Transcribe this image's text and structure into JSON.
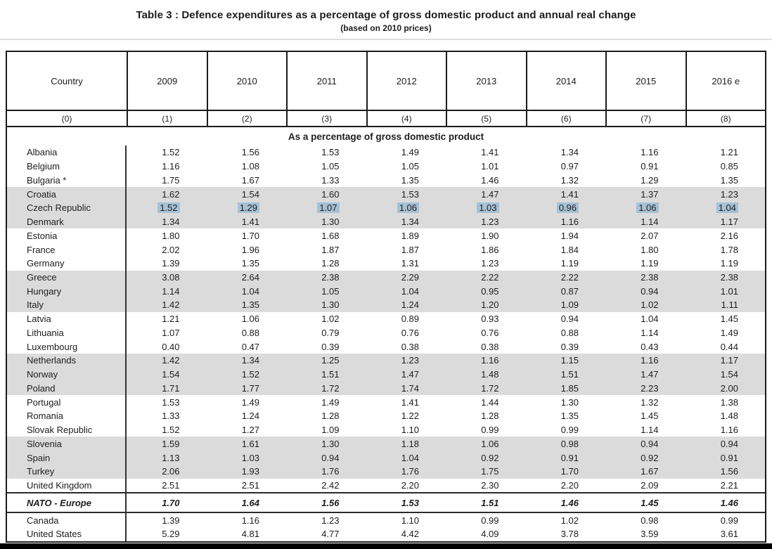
{
  "title": "Table 3 : Defence expenditures as a percentage of gross domestic product and annual real change",
  "subtitle": "(based on 2010 prices)",
  "section_header": "As a percentage of gross domestic product",
  "columns": [
    "Country",
    "2009",
    "2010",
    "2011",
    "2012",
    "2013",
    "2014",
    "2015",
    "2016 e"
  ],
  "column_indices": [
    "(0)",
    "(1)",
    "(2)",
    "(3)",
    "(4)",
    "(5)",
    "(6)",
    "(7)",
    "(8)"
  ],
  "colors": {
    "shaded_row": "#dbdbdb",
    "highlight_selection": "#a6c1d6",
    "border": "#1b1b1b"
  },
  "rows": [
    {
      "country": "Albania",
      "values": [
        "1.52",
        "1.56",
        "1.53",
        "1.49",
        "1.41",
        "1.34",
        "1.16",
        "1.21"
      ],
      "shaded": false,
      "highlighted": false,
      "total": false
    },
    {
      "country": "Belgium",
      "values": [
        "1.16",
        "1.08",
        "1.05",
        "1.05",
        "1.01",
        "0.97",
        "0.91",
        "0.85"
      ],
      "shaded": false,
      "highlighted": false,
      "total": false
    },
    {
      "country": "Bulgaria *",
      "values": [
        "1.75",
        "1.67",
        "1.33",
        "1.35",
        "1.46",
        "1.32",
        "1.29",
        "1.35"
      ],
      "shaded": false,
      "highlighted": false,
      "total": false
    },
    {
      "country": "Croatia",
      "values": [
        "1.62",
        "1.54",
        "1.60",
        "1.53",
        "1.47",
        "1.41",
        "1.37",
        "1.23"
      ],
      "shaded": true,
      "highlighted": false,
      "total": false
    },
    {
      "country": "Czech Republic",
      "values": [
        "1.52",
        "1.29",
        "1.07",
        "1.06",
        "1.03",
        "0.96",
        "1.06",
        "1.04"
      ],
      "shaded": true,
      "highlighted": true,
      "total": false
    },
    {
      "country": "Denmark",
      "values": [
        "1.34",
        "1.41",
        "1.30",
        "1.34",
        "1.23",
        "1.16",
        "1.14",
        "1.17"
      ],
      "shaded": true,
      "highlighted": false,
      "total": false
    },
    {
      "country": "Estonia",
      "values": [
        "1.80",
        "1.70",
        "1.68",
        "1.89",
        "1.90",
        "1.94",
        "2.07",
        "2.16"
      ],
      "shaded": false,
      "highlighted": false,
      "total": false
    },
    {
      "country": "France",
      "values": [
        "2.02",
        "1.96",
        "1.87",
        "1.87",
        "1.86",
        "1.84",
        "1.80",
        "1.78"
      ],
      "shaded": false,
      "highlighted": false,
      "total": false
    },
    {
      "country": "Germany",
      "values": [
        "1.39",
        "1.35",
        "1.28",
        "1.31",
        "1.23",
        "1.19",
        "1.19",
        "1.19"
      ],
      "shaded": false,
      "highlighted": false,
      "total": false
    },
    {
      "country": "Greece",
      "values": [
        "3.08",
        "2.64",
        "2.38",
        "2.29",
        "2.22",
        "2.22",
        "2.38",
        "2.38"
      ],
      "shaded": true,
      "highlighted": false,
      "total": false
    },
    {
      "country": "Hungary",
      "values": [
        "1.14",
        "1.04",
        "1.05",
        "1.04",
        "0.95",
        "0.87",
        "0.94",
        "1.01"
      ],
      "shaded": true,
      "highlighted": false,
      "total": false
    },
    {
      "country": "Italy",
      "values": [
        "1.42",
        "1.35",
        "1.30",
        "1.24",
        "1.20",
        "1.09",
        "1.02",
        "1.11"
      ],
      "shaded": true,
      "highlighted": false,
      "total": false
    },
    {
      "country": "Latvia",
      "values": [
        "1.21",
        "1.06",
        "1.02",
        "0.89",
        "0.93",
        "0.94",
        "1.04",
        "1.45"
      ],
      "shaded": false,
      "highlighted": false,
      "total": false
    },
    {
      "country": "Lithuania",
      "values": [
        "1.07",
        "0.88",
        "0.79",
        "0.76",
        "0.76",
        "0.88",
        "1.14",
        "1.49"
      ],
      "shaded": false,
      "highlighted": false,
      "total": false
    },
    {
      "country": "Luxembourg",
      "values": [
        "0.40",
        "0.47",
        "0.39",
        "0.38",
        "0.38",
        "0.39",
        "0.43",
        "0.44"
      ],
      "shaded": false,
      "highlighted": false,
      "total": false
    },
    {
      "country": "Netherlands",
      "values": [
        "1.42",
        "1.34",
        "1.25",
        "1.23",
        "1.16",
        "1.15",
        "1.16",
        "1.17"
      ],
      "shaded": true,
      "highlighted": false,
      "total": false
    },
    {
      "country": "Norway",
      "values": [
        "1.54",
        "1.52",
        "1.51",
        "1.47",
        "1.48",
        "1.51",
        "1.47",
        "1.54"
      ],
      "shaded": true,
      "highlighted": false,
      "total": false
    },
    {
      "country": "Poland",
      "values": [
        "1.71",
        "1.77",
        "1.72",
        "1.74",
        "1.72",
        "1.85",
        "2.23",
        "2.00"
      ],
      "shaded": true,
      "highlighted": false,
      "total": false
    },
    {
      "country": "Portugal",
      "values": [
        "1.53",
        "1.49",
        "1.49",
        "1.41",
        "1.44",
        "1.30",
        "1.32",
        "1.38"
      ],
      "shaded": false,
      "highlighted": false,
      "total": false
    },
    {
      "country": "Romania",
      "values": [
        "1.33",
        "1.24",
        "1.28",
        "1.22",
        "1.28",
        "1.35",
        "1.45",
        "1.48"
      ],
      "shaded": false,
      "highlighted": false,
      "total": false
    },
    {
      "country": "Slovak Republic",
      "values": [
        "1.52",
        "1.27",
        "1.09",
        "1.10",
        "0.99",
        "0.99",
        "1.14",
        "1.16"
      ],
      "shaded": false,
      "highlighted": false,
      "total": false
    },
    {
      "country": "Slovenia",
      "values": [
        "1.59",
        "1.61",
        "1.30",
        "1.18",
        "1.06",
        "0.98",
        "0.94",
        "0.94"
      ],
      "shaded": true,
      "highlighted": false,
      "total": false
    },
    {
      "country": "Spain",
      "values": [
        "1.13",
        "1.03",
        "0.94",
        "1.04",
        "0.92",
        "0.91",
        "0.92",
        "0.91"
      ],
      "shaded": true,
      "highlighted": false,
      "total": false
    },
    {
      "country": "Turkey",
      "values": [
        "2.06",
        "1.93",
        "1.76",
        "1.76",
        "1.75",
        "1.70",
        "1.67",
        "1.56"
      ],
      "shaded": true,
      "highlighted": false,
      "total": false
    },
    {
      "country": "United Kingdom",
      "values": [
        "2.51",
        "2.51",
        "2.42",
        "2.20",
        "2.30",
        "2.20",
        "2.09",
        "2.21"
      ],
      "shaded": false,
      "highlighted": false,
      "total": false
    },
    {
      "country": "NATO - Europe",
      "values": [
        "1.70",
        "1.64",
        "1.56",
        "1.53",
        "1.51",
        "1.46",
        "1.45",
        "1.46"
      ],
      "shaded": false,
      "highlighted": false,
      "total": true
    },
    {
      "country": "Canada",
      "values": [
        "1.39",
        "1.16",
        "1.23",
        "1.10",
        "0.99",
        "1.02",
        "0.98",
        "0.99"
      ],
      "shaded": false,
      "highlighted": false,
      "total": false
    },
    {
      "country": "United States",
      "values": [
        "5.29",
        "4.81",
        "4.77",
        "4.42",
        "4.09",
        "3.78",
        "3.59",
        "3.61"
      ],
      "shaded": false,
      "highlighted": false,
      "total": false
    }
  ]
}
